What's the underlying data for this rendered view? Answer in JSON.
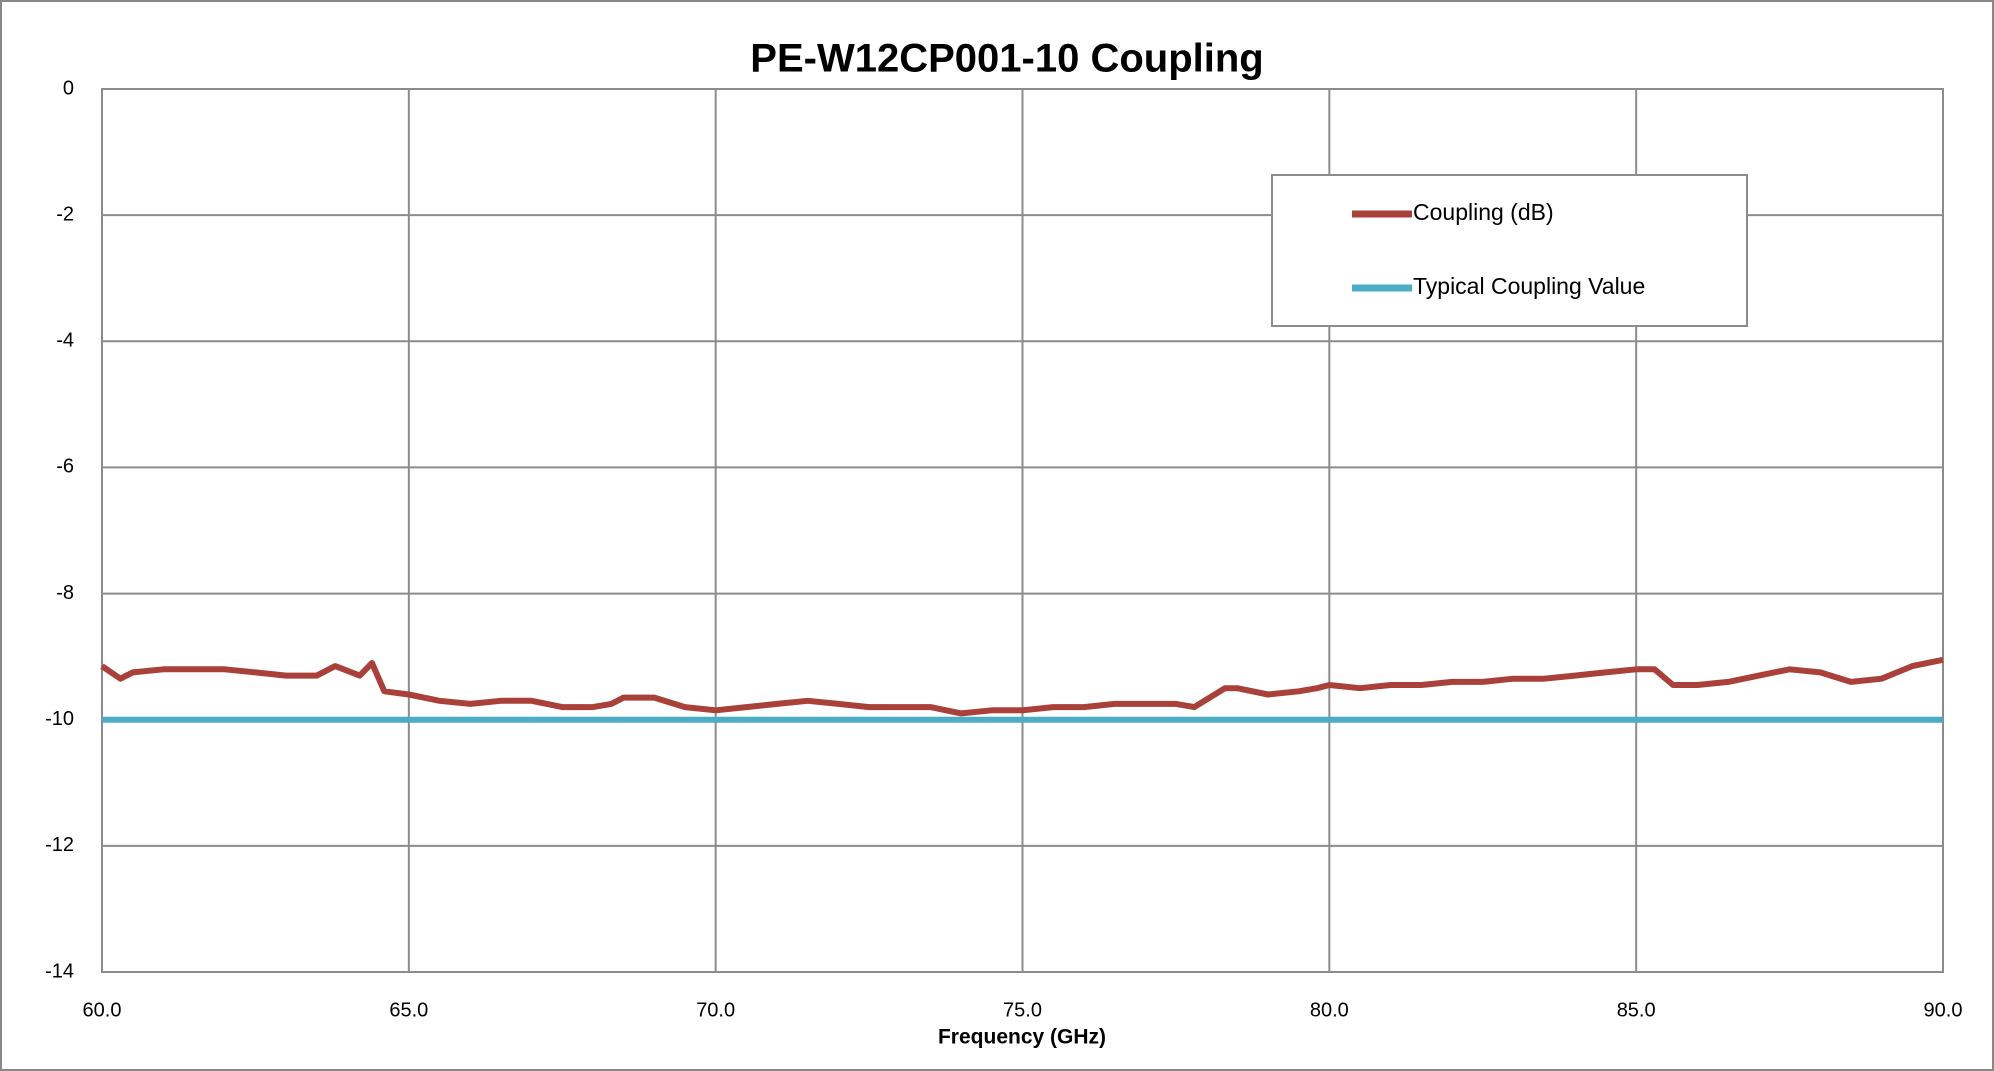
{
  "chart_data": {
    "type": "line",
    "title": "PE-W12CP001-10 Coupling",
    "x_label": "Frequency (GHz)",
    "xlim": [
      60,
      90
    ],
    "xticks": [
      {
        "value": 60,
        "label": "60.0"
      },
      {
        "value": 65,
        "label": "65.0"
      },
      {
        "value": 70,
        "label": "70.0"
      },
      {
        "value": 75,
        "label": "75.0"
      },
      {
        "value": 80,
        "label": "80.0"
      },
      {
        "value": 85,
        "label": "85.0"
      },
      {
        "value": 90,
        "label": "90.0"
      }
    ],
    "ylim": [
      -14,
      0
    ],
    "yticks": [
      0,
      -2,
      -4,
      -6,
      -8,
      -10,
      -12,
      -14
    ],
    "grid": true,
    "legend_position": "upper right",
    "series": [
      {
        "name": "Coupling (dB)",
        "color": "#a9403a",
        "x": [
          60.0,
          60.3,
          60.5,
          61.0,
          61.5,
          62.0,
          62.5,
          63.0,
          63.5,
          63.8,
          64.2,
          64.4,
          64.6,
          65.0,
          65.5,
          66.0,
          66.5,
          67.0,
          67.5,
          68.0,
          68.3,
          68.5,
          69.0,
          69.5,
          70.0,
          70.5,
          71.0,
          71.5,
          72.0,
          72.5,
          73.0,
          73.5,
          74.0,
          74.5,
          75.0,
          75.5,
          76.0,
          76.5,
          77.0,
          77.5,
          77.8,
          78.3,
          78.5,
          79.0,
          79.5,
          79.8,
          80.0,
          80.5,
          81.0,
          81.5,
          82.0,
          82.5,
          83.0,
          83.5,
          84.0,
          84.5,
          85.0,
          85.3,
          85.6,
          86.0,
          86.5,
          87.0,
          87.5,
          88.0,
          88.5,
          89.0,
          89.5,
          90.0
        ],
        "values": [
          -9.15,
          -9.35,
          -9.25,
          -9.2,
          -9.2,
          -9.2,
          -9.25,
          -9.3,
          -9.3,
          -9.15,
          -9.3,
          -9.1,
          -9.55,
          -9.6,
          -9.7,
          -9.75,
          -9.7,
          -9.7,
          -9.8,
          -9.8,
          -9.75,
          -9.65,
          -9.65,
          -9.8,
          -9.85,
          -9.8,
          -9.75,
          -9.7,
          -9.75,
          -9.8,
          -9.8,
          -9.8,
          -9.9,
          -9.85,
          -9.85,
          -9.8,
          -9.8,
          -9.75,
          -9.75,
          -9.75,
          -9.8,
          -9.5,
          -9.5,
          -9.6,
          -9.55,
          -9.5,
          -9.45,
          -9.5,
          -9.45,
          -9.45,
          -9.4,
          -9.4,
          -9.35,
          -9.35,
          -9.3,
          -9.25,
          -9.2,
          -9.2,
          -9.45,
          -9.45,
          -9.4,
          -9.3,
          -9.2,
          -9.25,
          -9.4,
          -9.35,
          -9.15,
          -9.05
        ]
      },
      {
        "name": "Typical Coupling Value",
        "color": "#4bacc6",
        "x": [
          60,
          90
        ],
        "values": [
          -10,
          -10
        ]
      }
    ]
  }
}
